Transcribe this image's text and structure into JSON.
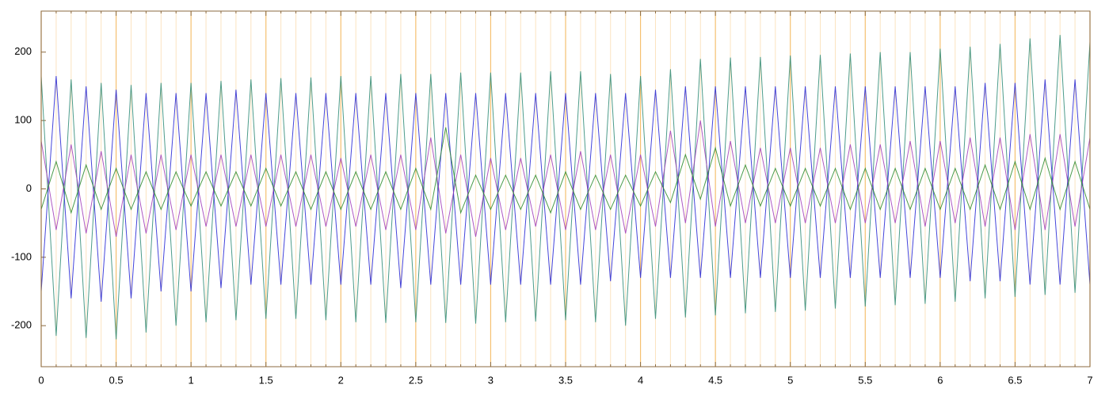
{
  "chart_data": {
    "type": "line",
    "xlim": [
      0,
      7
    ],
    "ylim": [
      -260,
      260
    ],
    "xticks": [
      0,
      0.5,
      1,
      1.5,
      2,
      2.5,
      3,
      3.5,
      4,
      4.5,
      5,
      5.5,
      6,
      6.5,
      7
    ],
    "xminorticks": [
      0.1,
      0.2,
      0.3,
      0.4,
      0.6,
      0.7,
      0.8,
      0.9,
      1.1,
      1.2,
      1.3,
      1.4,
      1.6,
      1.7,
      1.8,
      1.9,
      2.1,
      2.2,
      2.3,
      2.4,
      2.6,
      2.7,
      2.8,
      2.9,
      3.1,
      3.2,
      3.3,
      3.4,
      3.6,
      3.7,
      3.8,
      3.9,
      4.1,
      4.2,
      4.3,
      4.4,
      4.6,
      4.7,
      4.8,
      4.9,
      5.1,
      5.2,
      5.3,
      5.4,
      5.6,
      5.7,
      5.8,
      5.9,
      6.1,
      6.2,
      6.3,
      6.4,
      6.6,
      6.7,
      6.8,
      6.9
    ],
    "yticks": [
      -200,
      -100,
      0,
      100,
      200
    ],
    "grid": true,
    "grid_color": "#f5c070",
    "minor_grid_color": "#fbe3c0",
    "axis_color": "#8b6a40",
    "x": [
      0,
      0.1,
      0.2,
      0.3,
      0.4,
      0.5,
      0.6,
      0.7,
      0.8,
      0.9,
      1,
      1.1,
      1.2,
      1.3,
      1.4,
      1.5,
      1.6,
      1.7,
      1.8,
      1.9,
      2,
      2.1,
      2.2,
      2.3,
      2.4,
      2.5,
      2.6,
      2.7,
      2.8,
      2.9,
      3,
      3.1,
      3.2,
      3.3,
      3.4,
      3.5,
      3.6,
      3.7,
      3.8,
      3.9,
      4,
      4.1,
      4.2,
      4.3,
      4.4,
      4.5,
      4.6,
      4.7,
      4.8,
      4.9,
      5,
      5.1,
      5.2,
      5.3,
      5.4,
      5.5,
      5.6,
      5.7,
      5.8,
      5.9,
      6,
      6.1,
      6.2,
      6.3,
      6.4,
      6.5,
      6.6,
      6.7,
      6.8,
      6.9,
      7
    ],
    "series": [
      {
        "color": "#2e8b75",
        "values": [
          165,
          -215,
          160,
          -218,
          155,
          -220,
          152,
          -210,
          155,
          -200,
          155,
          -195,
          158,
          -192,
          160,
          -190,
          162,
          -190,
          163,
          -192,
          165,
          -195,
          165,
          -196,
          168,
          -195,
          168,
          -196,
          170,
          -197,
          170,
          -195,
          170,
          -194,
          172,
          -192,
          172,
          -195,
          168,
          -200,
          165,
          -190,
          175,
          -188,
          190,
          -185,
          192,
          -182,
          193,
          -180,
          195,
          -178,
          196,
          -175,
          198,
          -172,
          200,
          -170,
          200,
          -168,
          205,
          -165,
          208,
          -160,
          212,
          -158,
          220,
          -155,
          225,
          -152,
          215
        ]
      },
      {
        "color": "#2424d4",
        "values": [
          -150,
          165,
          -160,
          150,
          -165,
          145,
          -160,
          140,
          -150,
          140,
          -150,
          140,
          -145,
          145,
          -140,
          140,
          -140,
          140,
          -140,
          140,
          -140,
          140,
          -140,
          140,
          -145,
          140,
          -140,
          140,
          -140,
          140,
          -140,
          140,
          -140,
          140,
          -140,
          140,
          -140,
          140,
          -135,
          140,
          -130,
          145,
          -130,
          150,
          -130,
          150,
          -130,
          150,
          -130,
          150,
          -130,
          150,
          -130,
          150,
          -130,
          150,
          -130,
          150,
          -130,
          150,
          -130,
          150,
          -135,
          155,
          -135,
          155,
          -140,
          160,
          -140,
          160,
          -140
        ]
      },
      {
        "color": "#a03cb8",
        "values": [
          70,
          -60,
          65,
          -65,
          55,
          -70,
          50,
          -65,
          50,
          -60,
          50,
          -55,
          50,
          -55,
          50,
          -55,
          50,
          -55,
          50,
          -55,
          45,
          -55,
          50,
          -60,
          50,
          -60,
          75,
          -65,
          50,
          -70,
          45,
          -60,
          45,
          -55,
          50,
          -60,
          55,
          -60,
          50,
          -65,
          50,
          -55,
          85,
          -50,
          100,
          -55,
          70,
          -50,
          60,
          -50,
          60,
          -50,
          60,
          -50,
          65,
          -50,
          65,
          -50,
          70,
          -55,
          70,
          -50,
          75,
          -55,
          75,
          -60,
          80,
          -60,
          80,
          -55,
          75
        ]
      },
      {
        "color": "#2a8a2a",
        "values": [
          -30,
          40,
          -35,
          35,
          -30,
          30,
          -30,
          25,
          -30,
          25,
          -25,
          25,
          -25,
          25,
          -25,
          30,
          -25,
          25,
          -30,
          25,
          -30,
          25,
          -30,
          25,
          -30,
          30,
          -30,
          90,
          -35,
          20,
          -30,
          20,
          -30,
          20,
          -35,
          25,
          -30,
          20,
          -30,
          20,
          -25,
          25,
          -20,
          50,
          -15,
          60,
          -25,
          35,
          -25,
          30,
          -25,
          30,
          -25,
          30,
          -30,
          30,
          -30,
          30,
          -30,
          30,
          -30,
          30,
          -30,
          35,
          -30,
          40,
          -30,
          45,
          -30,
          40,
          -30
        ]
      }
    ]
  }
}
